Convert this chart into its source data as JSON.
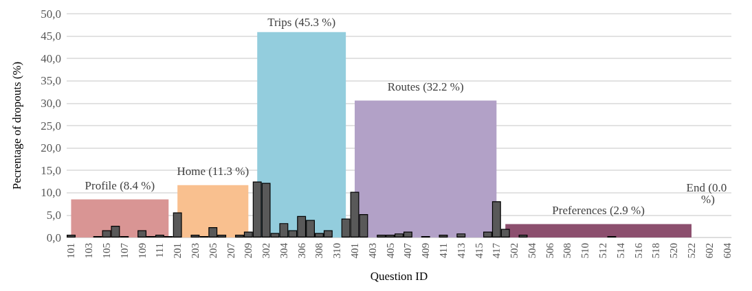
{
  "chart_data": {
    "type": "bar",
    "xlabel": "Question ID",
    "ylabel": "Pecrentage of dropouts (%)",
    "categories": [
      "101",
      null,
      "103",
      null,
      "105",
      null,
      "107",
      null,
      "109",
      null,
      "111",
      null,
      "201",
      null,
      "203",
      null,
      "205",
      null,
      "207",
      null,
      "209",
      null,
      "302",
      null,
      "304",
      null,
      "306",
      null,
      "308",
      null,
      "310",
      null,
      "401",
      null,
      "403",
      null,
      "405",
      null,
      "407",
      null,
      "409",
      null,
      "411",
      null,
      "413",
      null,
      "415",
      null,
      "417",
      null,
      "502",
      null,
      "504",
      null,
      "506",
      null,
      "508",
      null,
      "510",
      null,
      "512",
      null,
      "514",
      null,
      "516",
      null,
      "518",
      null,
      "520",
      null,
      "522",
      null,
      "602",
      null,
      "604"
    ],
    "series": [
      {
        "type": "area",
        "name": "Profile (8.4 %)",
        "color": "#d99594",
        "values": [
          8.5,
          8.5,
          8.5,
          8.5,
          8.5,
          8.5,
          8.5,
          8.5,
          8.5,
          8.5,
          8.5,
          8.5,
          null,
          null,
          null,
          null,
          null,
          null,
          null,
          null,
          null,
          null,
          null,
          null,
          null,
          null,
          null,
          null,
          null,
          null,
          null,
          null,
          null,
          null,
          null,
          null,
          null,
          null,
          null,
          null,
          null,
          null,
          null,
          null,
          null,
          null,
          null,
          null,
          null,
          null,
          null,
          null,
          null,
          null,
          null,
          null,
          null,
          null,
          null,
          null,
          null,
          null,
          null,
          null,
          null,
          null,
          null,
          null,
          null,
          null,
          null,
          null,
          null,
          null,
          null
        ]
      },
      {
        "type": "area",
        "name": "Home (11.3 %)",
        "color": "#f9c08f",
        "values": [
          null,
          null,
          null,
          null,
          null,
          null,
          null,
          null,
          null,
          null,
          null,
          null,
          11.7,
          11.7,
          11.7,
          11.7,
          11.7,
          11.7,
          11.7,
          11.7,
          11.7,
          null,
          null,
          null,
          null,
          null,
          null,
          null,
          null,
          null,
          null,
          null,
          null,
          null,
          null,
          null,
          null,
          null,
          null,
          null,
          null,
          null,
          null,
          null,
          null,
          null,
          null,
          null,
          null,
          null,
          null,
          null,
          null,
          null,
          null,
          null,
          null,
          null,
          null,
          null,
          null,
          null,
          null,
          null,
          null,
          null,
          null,
          null,
          null,
          null,
          null,
          null,
          null,
          null,
          null
        ]
      },
      {
        "type": "area",
        "name": "Trips (45.3 %)",
        "color": "#93cddd",
        "values": [
          null,
          null,
          null,
          null,
          null,
          null,
          null,
          null,
          null,
          null,
          null,
          null,
          null,
          null,
          null,
          null,
          null,
          null,
          null,
          null,
          null,
          45.9,
          45.9,
          45.9,
          45.9,
          45.9,
          45.9,
          45.9,
          45.9,
          45.9,
          45.9,
          45.9,
          null,
          null,
          null,
          null,
          null,
          null,
          null,
          null,
          null,
          null,
          null,
          null,
          null,
          null,
          null,
          null,
          null,
          null,
          null,
          null,
          null,
          null,
          null,
          null,
          null,
          null,
          null,
          null,
          null,
          null,
          null,
          null,
          null,
          null,
          null,
          null,
          null,
          null,
          null,
          null,
          null,
          null,
          null
        ]
      },
      {
        "type": "area",
        "name": "Routes (32.2 %)",
        "color": "#b2a1c7",
        "values": [
          null,
          null,
          null,
          null,
          null,
          null,
          null,
          null,
          null,
          null,
          null,
          null,
          null,
          null,
          null,
          null,
          null,
          null,
          null,
          null,
          null,
          null,
          null,
          null,
          null,
          null,
          null,
          null,
          null,
          null,
          null,
          null,
          30.6,
          30.6,
          30.6,
          30.6,
          30.6,
          30.6,
          30.6,
          30.6,
          30.6,
          30.6,
          30.6,
          30.6,
          30.6,
          30.6,
          30.6,
          30.6,
          30.6,
          null,
          null,
          null,
          null,
          null,
          null,
          null,
          null,
          null,
          null,
          null,
          null,
          null,
          null,
          null,
          null,
          null,
          null,
          null,
          null,
          null,
          null,
          null,
          null,
          null,
          null
        ]
      },
      {
        "type": "area",
        "name": "Preferences (2.9 %)",
        "color": "#8c4f6e",
        "values": [
          null,
          null,
          null,
          null,
          null,
          null,
          null,
          null,
          null,
          null,
          null,
          null,
          null,
          null,
          null,
          null,
          null,
          null,
          null,
          null,
          null,
          null,
          null,
          null,
          null,
          null,
          null,
          null,
          null,
          null,
          null,
          null,
          null,
          null,
          null,
          null,
          null,
          null,
          null,
          null,
          null,
          null,
          null,
          null,
          null,
          null,
          null,
          null,
          null,
          3.0,
          3.0,
          3.0,
          3.0,
          3.0,
          3.0,
          3.0,
          3.0,
          3.0,
          3.0,
          3.0,
          3.0,
          3.0,
          3.0,
          3.0,
          3.0,
          3.0,
          3.0,
          3.0,
          3.0,
          3.0,
          3.0,
          null,
          null,
          null,
          null
        ]
      },
      {
        "color": "#595959",
        "values": [
          0.6,
          0,
          0,
          0.3,
          1.6,
          2.6,
          0.3,
          0,
          1.6,
          0.3,
          0.6,
          0.3,
          5.6,
          0,
          0.6,
          0.3,
          2.3,
          0.6,
          0,
          0.6,
          1.3,
          12.5,
          12.2,
          1.0,
          3.2,
          1.6,
          4.8,
          3.9,
          1.0,
          1.6,
          0,
          4.2,
          10.2,
          5.2,
          0,
          0.6,
          0.6,
          0.9,
          1.3,
          0,
          0.3,
          0,
          0.6,
          0,
          0.9,
          0,
          0,
          1.3,
          8.1,
          1.9,
          0,
          0.6,
          0,
          0,
          0,
          0,
          0,
          0,
          0,
          0,
          0,
          0.3,
          0,
          0,
          0,
          0,
          0,
          0,
          0,
          0,
          0,
          0,
          0,
          0,
          0
        ]
      }
    ],
    "ylim": [
      0,
      50
    ],
    "yticks": [
      {
        "value": 0,
        "label": "0,0"
      },
      {
        "value": 5,
        "label": "5,0"
      },
      {
        "value": 10,
        "label": "10,0"
      },
      {
        "value": 15,
        "label": "15,0"
      },
      {
        "value": 20,
        "label": "20,0"
      },
      {
        "value": 25,
        "label": "25,0"
      },
      {
        "value": 30,
        "label": "30,0"
      },
      {
        "value": 35,
        "label": "35,0"
      },
      {
        "value": 40,
        "label": "40,0"
      },
      {
        "value": 45,
        "label": "45,0"
      },
      {
        "value": 50,
        "label": "50,0"
      }
    ],
    "grid": "y",
    "annotations": [
      "End (0.0 %)"
    ]
  }
}
